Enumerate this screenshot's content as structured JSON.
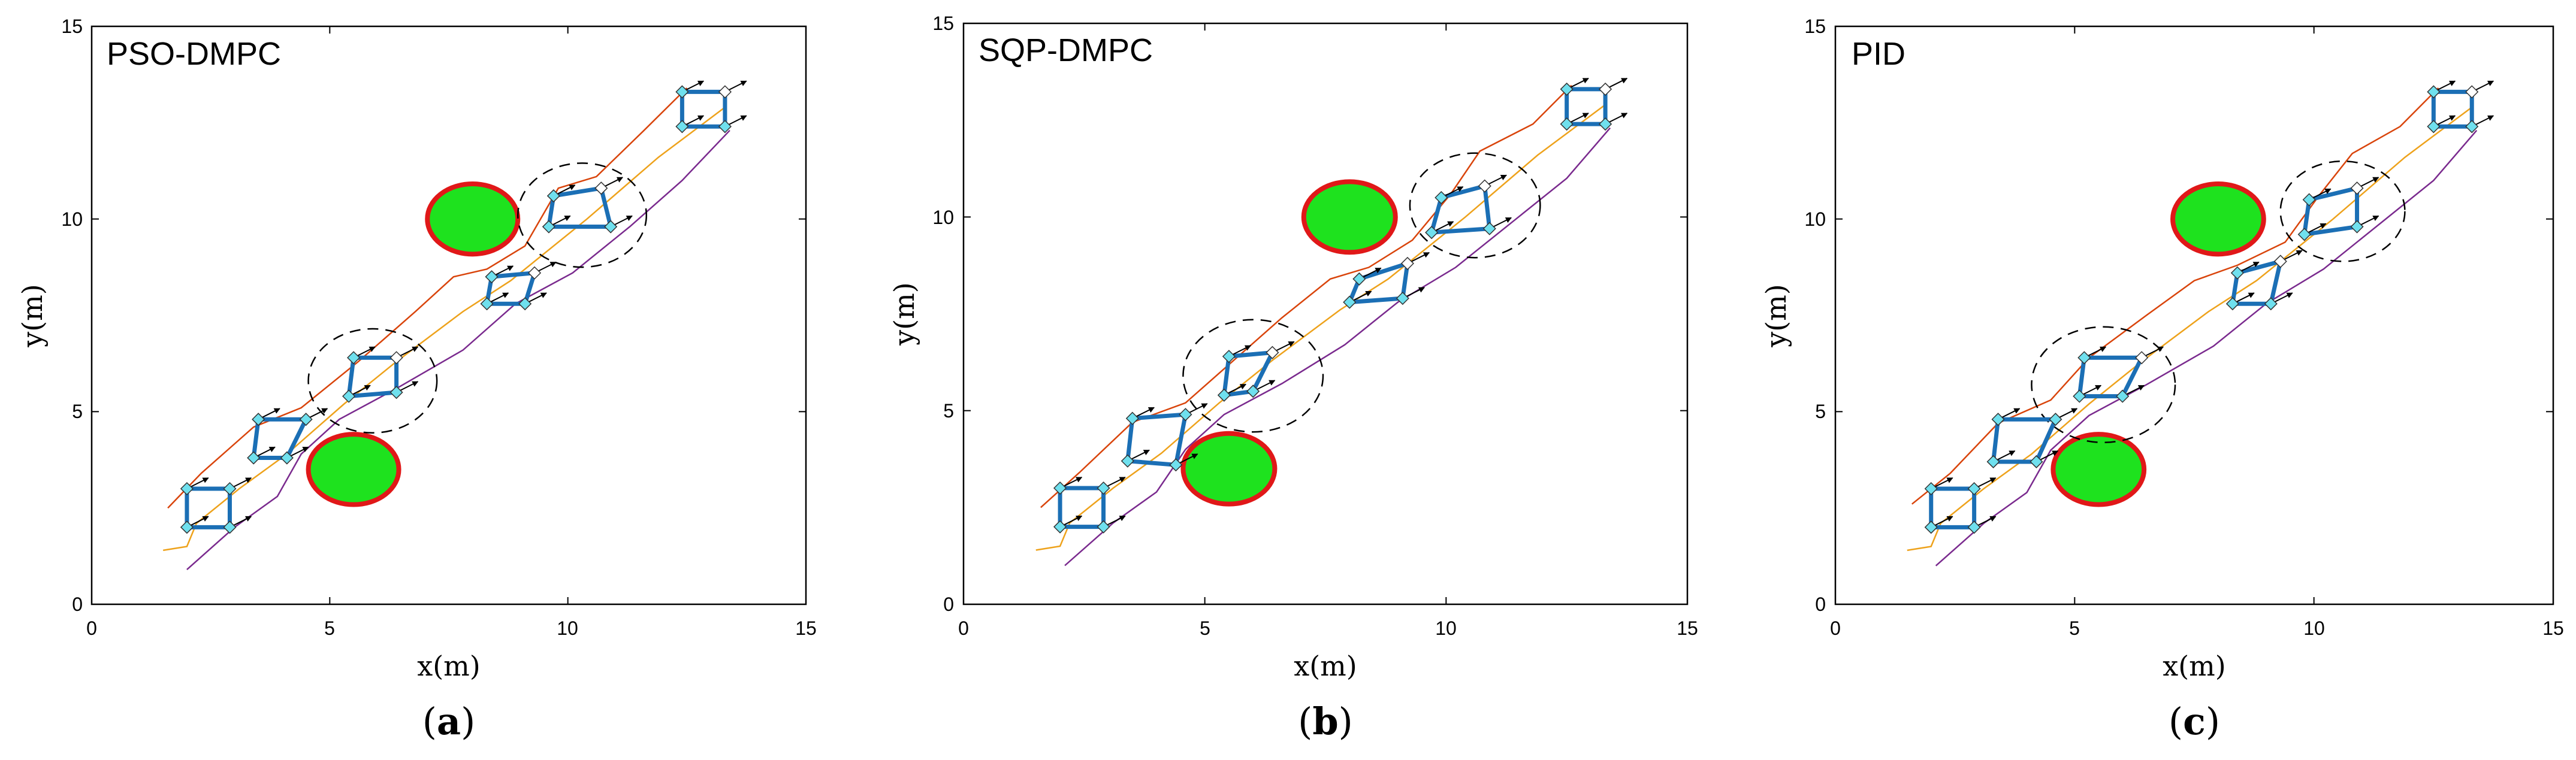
{
  "colors": {
    "obstacle_fill": "#1ee21e",
    "obstacle_edge": "#e01818",
    "formation_edge": "#1b6fb5",
    "agent_marker": "#6fe0ee",
    "trajectory_red": "#d9440b",
    "trajectory_orange": "#eea21b",
    "trajectory_purple": "#7a2a8e",
    "circle_dash": "#000000"
  },
  "chart_data": [
    {
      "type": "scatter",
      "id": "a",
      "title": "PSO-DMPC",
      "xlabel": "x(m)",
      "ylabel": "y(m)",
      "xlim": [
        0,
        15
      ],
      "ylim": [
        0,
        15
      ],
      "xticks": [
        "0",
        "5",
        "10",
        "15"
      ],
      "yticks": [
        "0",
        "5",
        "10",
        "15"
      ],
      "caption_open": "(",
      "caption_letter": "a",
      "caption_close": ")",
      "obstacles": [
        {
          "cx": 8.0,
          "cy": 10.0,
          "rx": 0.95,
          "ry": 0.95
        },
        {
          "cx": 5.5,
          "cy": 3.5,
          "rx": 0.95,
          "ry": 0.95
        }
      ],
      "safety_circles": [
        {
          "cx": 5.9,
          "cy": 5.8,
          "r": 1.35
        },
        {
          "cx": 10.3,
          "cy": 10.1,
          "r": 1.35
        }
      ],
      "formations": [
        {
          "x": [
            2.0,
            2.9,
            2.9,
            2.0
          ],
          "y": [
            3.0,
            3.0,
            2.0,
            2.0
          ]
        },
        {
          "x": [
            3.5,
            4.5,
            4.1,
            3.4
          ],
          "y": [
            4.8,
            4.8,
            3.8,
            3.8
          ]
        },
        {
          "x": [
            5.5,
            6.4,
            6.4,
            5.4
          ],
          "y": [
            6.4,
            6.4,
            5.5,
            5.4
          ]
        },
        {
          "x": [
            8.4,
            9.3,
            9.1,
            8.3
          ],
          "y": [
            8.5,
            8.6,
            7.8,
            7.8
          ]
        },
        {
          "x": [
            9.7,
            10.7,
            10.9,
            9.6
          ],
          "y": [
            10.6,
            10.8,
            9.8,
            9.8
          ]
        },
        {
          "x": [
            12.4,
            13.3,
            13.3,
            12.4
          ],
          "y": [
            13.3,
            13.3,
            12.4,
            12.4
          ]
        }
      ],
      "trajectories": [
        {
          "name": "red",
          "x": [
            1.6,
            2.3,
            3.4,
            4.4,
            5.6,
            6.8,
            7.6,
            8.3,
            9.1,
            9.8,
            10.6,
            11.6,
            12.5
          ],
          "y": [
            2.5,
            3.4,
            4.6,
            5.1,
            6.3,
            7.6,
            8.5,
            8.7,
            9.3,
            10.8,
            11.1,
            12.3,
            13.4
          ]
        },
        {
          "name": "orange",
          "x": [
            1.5,
            2.0,
            2.2,
            3.1,
            4.1,
            5.3,
            6.4,
            7.8,
            8.8,
            10.4,
            11.9,
            13.3
          ],
          "y": [
            1.4,
            1.5,
            2.1,
            3.0,
            3.9,
            5.2,
            6.3,
            7.6,
            8.4,
            10.0,
            11.6,
            12.9
          ]
        },
        {
          "name": "purple",
          "x": [
            2.0,
            3.0,
            3.9,
            4.4,
            5.2,
            6.4,
            7.8,
            8.9,
            10.1,
            11.3,
            12.4,
            13.4
          ],
          "y": [
            0.9,
            2.0,
            2.8,
            3.9,
            4.8,
            5.6,
            6.6,
            7.8,
            8.6,
            9.8,
            11.0,
            12.3
          ]
        }
      ]
    },
    {
      "type": "scatter",
      "id": "b",
      "title": "SQP-DMPC",
      "xlabel": "x(m)",
      "ylabel": "y(m)",
      "xlim": [
        0,
        15
      ],
      "ylim": [
        0,
        15
      ],
      "xticks": [
        "0",
        "5",
        "10",
        "15"
      ],
      "yticks": [
        "0",
        "5",
        "10",
        "15"
      ],
      "caption_open": "(",
      "caption_letter": "b",
      "caption_close": ")",
      "obstacles": [
        {
          "cx": 8.0,
          "cy": 10.0,
          "rx": 0.95,
          "ry": 0.95
        },
        {
          "cx": 5.5,
          "cy": 3.5,
          "rx": 0.95,
          "ry": 0.95
        }
      ],
      "safety_circles": [
        {
          "cx": 6.0,
          "cy": 5.9,
          "r": 1.45
        },
        {
          "cx": 10.6,
          "cy": 10.3,
          "r": 1.35
        }
      ],
      "formations": [
        {
          "x": [
            2.0,
            2.9,
            2.9,
            2.0
          ],
          "y": [
            3.0,
            3.0,
            2.0,
            2.0
          ]
        },
        {
          "x": [
            3.5,
            4.6,
            4.4,
            3.4
          ],
          "y": [
            4.8,
            4.9,
            3.6,
            3.7
          ]
        },
        {
          "x": [
            5.5,
            6.4,
            6.0,
            5.4
          ],
          "y": [
            6.4,
            6.5,
            5.5,
            5.4
          ]
        },
        {
          "x": [
            8.2,
            9.2,
            9.1,
            8.0
          ],
          "y": [
            8.4,
            8.8,
            7.9,
            7.8
          ]
        },
        {
          "x": [
            9.9,
            10.8,
            10.9,
            9.7
          ],
          "y": [
            10.5,
            10.8,
            9.7,
            9.6
          ]
        },
        {
          "x": [
            12.5,
            13.3,
            13.3,
            12.5
          ],
          "y": [
            13.3,
            13.3,
            12.4,
            12.4
          ]
        }
      ],
      "trajectories": [
        {
          "name": "red",
          "x": [
            1.6,
            2.4,
            3.5,
            4.6,
            5.6,
            6.6,
            7.6,
            8.4,
            9.3,
            10.1,
            10.7,
            11.8,
            12.6
          ],
          "y": [
            2.5,
            3.4,
            4.7,
            5.2,
            6.3,
            7.4,
            8.4,
            8.7,
            9.4,
            10.6,
            11.7,
            12.4,
            13.4
          ]
        },
        {
          "name": "orange",
          "x": [
            1.5,
            2.0,
            2.2,
            3.1,
            4.1,
            5.3,
            6.4,
            7.8,
            8.8,
            10.4,
            11.9,
            13.3
          ],
          "y": [
            1.4,
            1.5,
            2.1,
            3.0,
            3.9,
            5.2,
            6.3,
            7.6,
            8.4,
            10.0,
            11.6,
            12.9
          ]
        },
        {
          "name": "purple",
          "x": [
            2.1,
            3.1,
            4.0,
            4.6,
            5.4,
            6.6,
            7.9,
            9.0,
            10.2,
            11.4,
            12.5,
            13.4
          ],
          "y": [
            1.0,
            2.1,
            2.9,
            4.0,
            4.9,
            5.7,
            6.7,
            7.8,
            8.7,
            9.9,
            11.0,
            12.3
          ]
        }
      ]
    },
    {
      "type": "scatter",
      "id": "c",
      "title": "PID",
      "xlabel": "x(m)",
      "ylabel": "y(m)",
      "xlim": [
        0,
        15
      ],
      "ylim": [
        0,
        15
      ],
      "xticks": [
        "0",
        "5",
        "10",
        "15"
      ],
      "yticks": [
        "0",
        "5",
        "10",
        "15"
      ],
      "caption_open": "(",
      "caption_letter": "c",
      "caption_close": ")",
      "obstacles": [
        {
          "cx": 8.0,
          "cy": 10.0,
          "rx": 0.95,
          "ry": 0.95
        },
        {
          "cx": 5.5,
          "cy": 3.5,
          "rx": 0.95,
          "ry": 0.95
        }
      ],
      "safety_circles": [
        {
          "cx": 5.6,
          "cy": 5.7,
          "r": 1.5
        },
        {
          "cx": 10.6,
          "cy": 10.2,
          "r": 1.3
        }
      ],
      "formations": [
        {
          "x": [
            2.0,
            2.9,
            2.9,
            2.0
          ],
          "y": [
            3.0,
            3.0,
            2.0,
            2.0
          ]
        },
        {
          "x": [
            3.4,
            4.6,
            4.2,
            3.3
          ],
          "y": [
            4.8,
            4.8,
            3.7,
            3.7
          ]
        },
        {
          "x": [
            5.2,
            6.4,
            6.0,
            5.1
          ],
          "y": [
            6.4,
            6.4,
            5.4,
            5.4
          ]
        },
        {
          "x": [
            8.4,
            9.3,
            9.1,
            8.3
          ],
          "y": [
            8.6,
            8.9,
            7.8,
            7.8
          ]
        },
        {
          "x": [
            9.9,
            10.9,
            10.9,
            9.8
          ],
          "y": [
            10.5,
            10.8,
            9.8,
            9.6
          ]
        },
        {
          "x": [
            12.5,
            13.3,
            13.3,
            12.5
          ],
          "y": [
            13.3,
            13.3,
            12.4,
            12.4
          ]
        }
      ],
      "trajectories": [
        {
          "name": "red",
          "x": [
            1.6,
            2.4,
            3.4,
            4.5,
            5.3,
            6.5,
            7.5,
            8.4,
            9.4,
            10.1,
            10.8,
            11.8,
            12.6
          ],
          "y": [
            2.6,
            3.4,
            4.7,
            5.3,
            6.4,
            7.5,
            8.4,
            8.8,
            9.4,
            10.6,
            11.7,
            12.4,
            13.4
          ]
        },
        {
          "name": "orange",
          "x": [
            1.5,
            2.0,
            2.2,
            3.1,
            4.1,
            5.3,
            6.4,
            7.8,
            8.8,
            10.4,
            11.9,
            13.3
          ],
          "y": [
            1.4,
            1.5,
            2.1,
            3.0,
            3.9,
            5.2,
            6.3,
            7.6,
            8.4,
            10.0,
            11.6,
            12.9
          ]
        },
        {
          "name": "purple",
          "x": [
            2.1,
            3.1,
            4.0,
            4.5,
            5.3,
            6.5,
            7.9,
            9.0,
            10.2,
            11.4,
            12.5,
            13.4
          ],
          "y": [
            1.0,
            2.1,
            2.9,
            4.0,
            4.9,
            5.7,
            6.7,
            7.8,
            8.7,
            9.9,
            11.0,
            12.3
          ]
        }
      ]
    }
  ]
}
